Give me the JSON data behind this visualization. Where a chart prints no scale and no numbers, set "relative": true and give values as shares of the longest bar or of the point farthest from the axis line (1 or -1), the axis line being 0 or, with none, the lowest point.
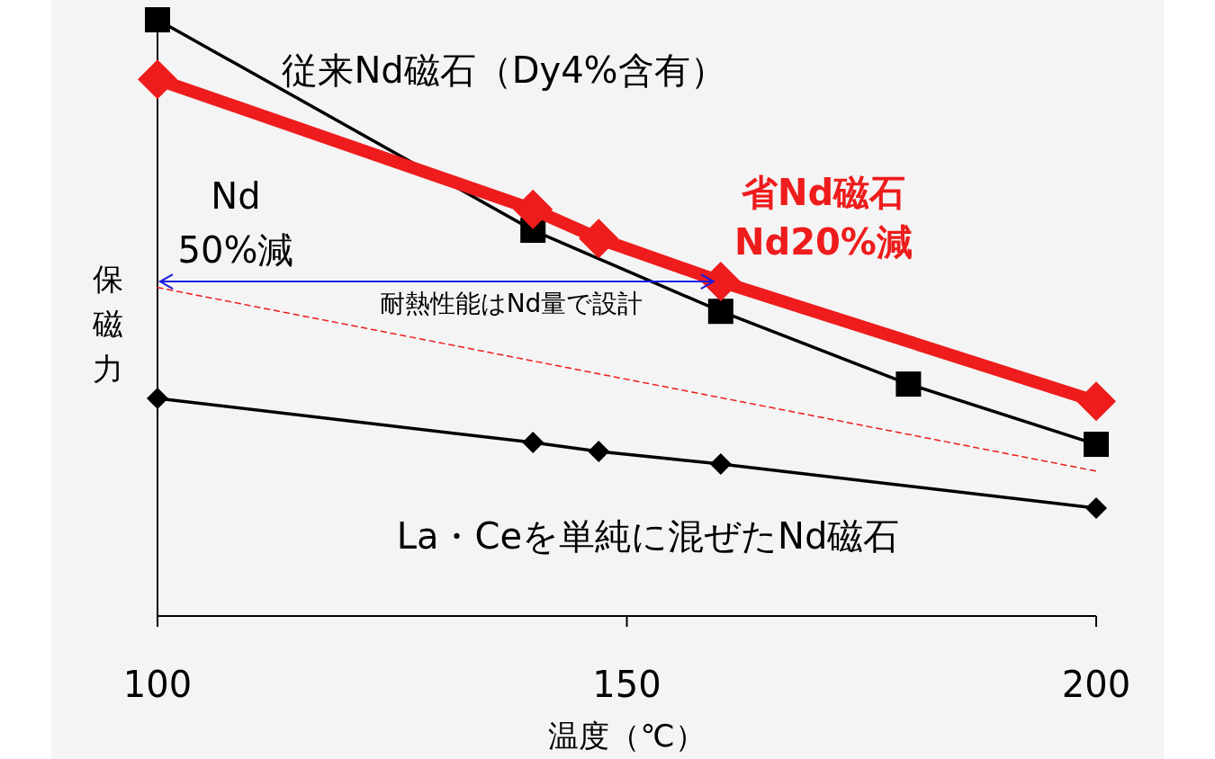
{
  "chart_data": {
    "type": "line",
    "relative": true,
    "xlabel": "温度（℃）",
    "ylabel": "保磁力",
    "xlim": [
      100,
      200
    ],
    "xticks": [
      100,
      150,
      200
    ],
    "grid": false,
    "series": [
      {
        "name": "従来Nd磁石（Dy4%含有）",
        "color": "#000000",
        "marker": "square",
        "x": [
          100,
          140,
          160,
          180,
          200
        ],
        "values": [
          1.0,
          0.647,
          0.511,
          0.389,
          0.288
        ]
      },
      {
        "name": "省Nd磁石 Nd20%減",
        "color": "#ee1c1c",
        "marker": "diamond",
        "x": [
          100,
          140,
          147,
          160,
          200
        ],
        "values": [
          0.9,
          0.682,
          0.633,
          0.561,
          0.36
        ]
      },
      {
        "name": "La・Ceを単純に混ぜたNd磁石",
        "color": "#000000",
        "marker": "diamond",
        "x": [
          100,
          140,
          147,
          160,
          200
        ],
        "values": [
          0.365,
          0.291,
          0.276,
          0.255,
          0.181
        ]
      },
      {
        "color": "#ee1c1c",
        "marker": "none",
        "line_style": "dashed",
        "x": [
          100,
          200
        ],
        "values": [
          0.551,
          0.243
        ]
      }
    ],
    "annotations": [
      "Nd 50%減",
      "耐熱性能はNd量で設計"
    ]
  }
}
